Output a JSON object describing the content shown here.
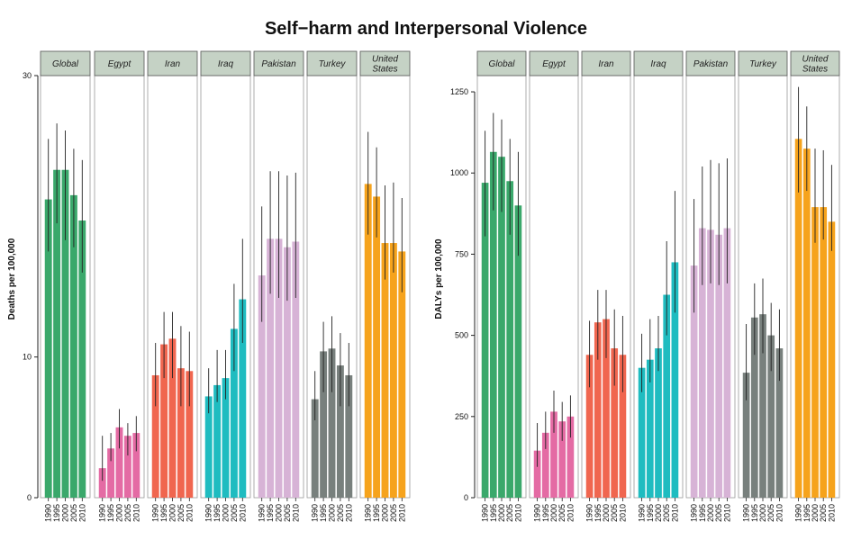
{
  "title": "Self−harm and Interpersonal Violence",
  "colors": {
    "Global": "#3aa86b",
    "Egypt": "#e46ba4",
    "Iran": "#f0664f",
    "Iraq": "#1fbcc0",
    "Pakistan": "#d7b3d6",
    "Turkey": "#78807d",
    "United States": "#f6a31c"
  },
  "strip_fill": "#c5d2c5",
  "chart_data": [
    {
      "type": "bar",
      "ylabel": "Deaths per 100,000",
      "ylim": [
        0,
        30
      ],
      "yticks": [
        0,
        10,
        30
      ],
      "years": [
        "1990",
        "1995",
        "2000",
        "2005",
        "2010"
      ],
      "panels": [
        {
          "name": "Global",
          "label_lines": [
            "Global"
          ],
          "values": [
            21.2,
            23.3,
            23.3,
            21.5,
            19.7
          ],
          "lower": [
            17.5,
            19.5,
            18.3,
            17.8,
            16.0
          ],
          "upper": [
            25.5,
            26.6,
            26.1,
            24.8,
            24.0
          ]
        },
        {
          "name": "Egypt",
          "label_lines": [
            "Egypt"
          ],
          "values": [
            2.1,
            3.5,
            5.0,
            4.4,
            4.6
          ],
          "lower": [
            1.2,
            2.6,
            3.5,
            3.0,
            3.3
          ],
          "upper": [
            4.4,
            4.6,
            6.3,
            5.3,
            5.8
          ]
        },
        {
          "name": "Iran",
          "label_lines": [
            "Iran"
          ],
          "values": [
            8.7,
            10.9,
            11.3,
            9.2,
            9.0
          ],
          "lower": [
            6.5,
            8.5,
            8.5,
            6.5,
            6.5
          ],
          "upper": [
            11.0,
            13.2,
            13.2,
            12.2,
            11.8
          ]
        },
        {
          "name": "Iraq",
          "label_lines": [
            "Iraq"
          ],
          "values": [
            7.2,
            8.0,
            8.5,
            12.0,
            14.1
          ],
          "lower": [
            6.0,
            6.8,
            7.0,
            9.0,
            11.0
          ],
          "upper": [
            9.2,
            10.5,
            10.5,
            15.2,
            18.4
          ]
        },
        {
          "name": "Pakistan",
          "label_lines": [
            "Pakistan"
          ],
          "values": [
            15.8,
            18.4,
            18.4,
            17.8,
            18.2
          ],
          "lower": [
            12.5,
            14.5,
            14.2,
            14.0,
            14.2
          ],
          "upper": [
            20.7,
            23.2,
            23.2,
            22.9,
            23.1
          ]
        },
        {
          "name": "Turkey",
          "label_lines": [
            "Turkey"
          ],
          "values": [
            7.0,
            10.4,
            10.6,
            9.4,
            8.7
          ],
          "lower": [
            5.5,
            7.5,
            7.5,
            6.5,
            6.5
          ],
          "upper": [
            9.0,
            12.5,
            12.9,
            11.7,
            11.0
          ]
        },
        {
          "name": "United States",
          "label_lines": [
            "United",
            "States"
          ],
          "values": [
            22.3,
            21.4,
            18.1,
            18.1,
            17.5
          ],
          "lower": [
            18.7,
            18.5,
            15.5,
            16.0,
            14.6
          ],
          "upper": [
            26.0,
            24.9,
            22.2,
            22.4,
            21.3
          ]
        }
      ]
    },
    {
      "type": "bar",
      "ylabel": "DALYs per 100,000",
      "ylim": [
        0,
        1300
      ],
      "yticks": [
        0,
        250,
        500,
        750,
        1000,
        1250
      ],
      "years": [
        "1990",
        "1995",
        "2000",
        "2005",
        "2010"
      ],
      "panels": [
        {
          "name": "Global",
          "label_lines": [
            "Global"
          ],
          "values": [
            970,
            1065,
            1050,
            975,
            900
          ],
          "lower": [
            805,
            885,
            880,
            810,
            745
          ],
          "upper": [
            1130,
            1185,
            1165,
            1105,
            1065
          ]
        },
        {
          "name": "Egypt",
          "label_lines": [
            "Egypt"
          ],
          "values": [
            145,
            200,
            265,
            235,
            250
          ],
          "lower": [
            95,
            150,
            200,
            175,
            185
          ],
          "upper": [
            230,
            265,
            330,
            295,
            315
          ]
        },
        {
          "name": "Iran",
          "label_lines": [
            "Iran"
          ],
          "values": [
            440,
            540,
            550,
            460,
            440
          ],
          "lower": [
            340,
            425,
            430,
            345,
            325
          ],
          "upper": [
            545,
            640,
            640,
            580,
            560
          ]
        },
        {
          "name": "Iraq",
          "label_lines": [
            "Iraq"
          ],
          "values": [
            400,
            425,
            460,
            625,
            725
          ],
          "lower": [
            325,
            355,
            390,
            500,
            570
          ],
          "upper": [
            505,
            550,
            560,
            790,
            945
          ]
        },
        {
          "name": "Pakistan",
          "label_lines": [
            "Pakistan"
          ],
          "values": [
            715,
            830,
            825,
            810,
            830
          ],
          "lower": [
            570,
            655,
            660,
            655,
            660
          ],
          "upper": [
            920,
            1020,
            1040,
            1030,
            1045
          ]
        },
        {
          "name": "Turkey",
          "label_lines": [
            "Turkey"
          ],
          "values": [
            385,
            555,
            565,
            500,
            460
          ],
          "lower": [
            300,
            440,
            445,
            390,
            360
          ],
          "upper": [
            535,
            660,
            675,
            600,
            580
          ]
        },
        {
          "name": "United States",
          "label_lines": [
            "United",
            "States"
          ],
          "values": [
            1105,
            1075,
            895,
            895,
            850
          ],
          "lower": [
            940,
            945,
            785,
            795,
            760
          ],
          "upper": [
            1265,
            1205,
            1075,
            1070,
            1025
          ]
        }
      ]
    }
  ]
}
